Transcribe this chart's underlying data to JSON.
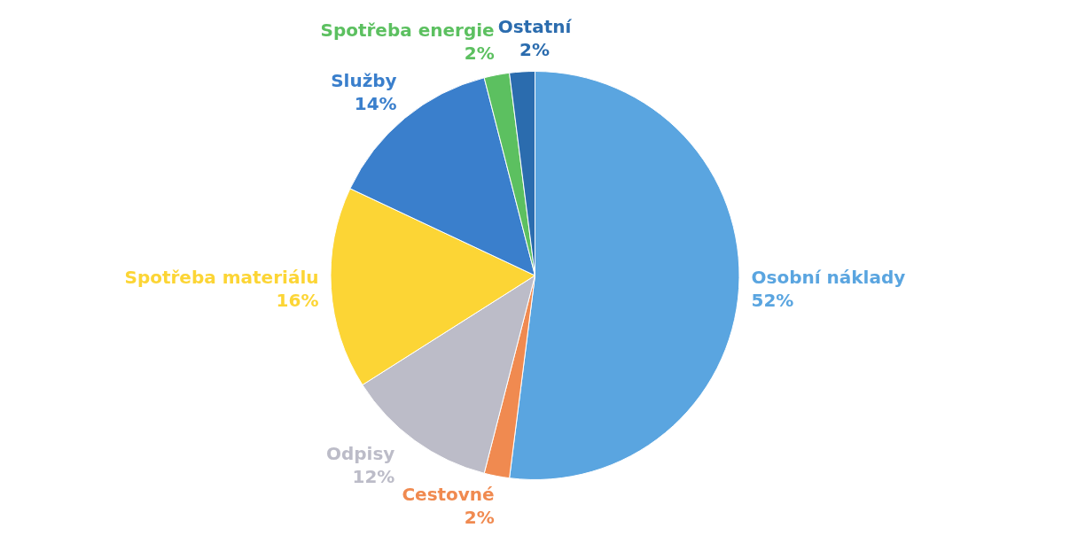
{
  "chart_data": {
    "type": "pie",
    "categories": [
      "Osobní náklady",
      "Cestovné",
      "Odpisy",
      "Spotřeba materiálu",
      "Služby",
      "Spotřeba energie",
      "Ostatní"
    ],
    "values": [
      52,
      2,
      12,
      16,
      14,
      2,
      2
    ],
    "value_labels": [
      "52%",
      "2%",
      "12%",
      "16%",
      "14%",
      "2%",
      "2%"
    ],
    "colors": [
      "#5aa5e0",
      "#f08a50",
      "#bcbcc8",
      "#fcd535",
      "#3a7fcc",
      "#5cc060",
      "#2b6cae"
    ],
    "legend": false
  }
}
